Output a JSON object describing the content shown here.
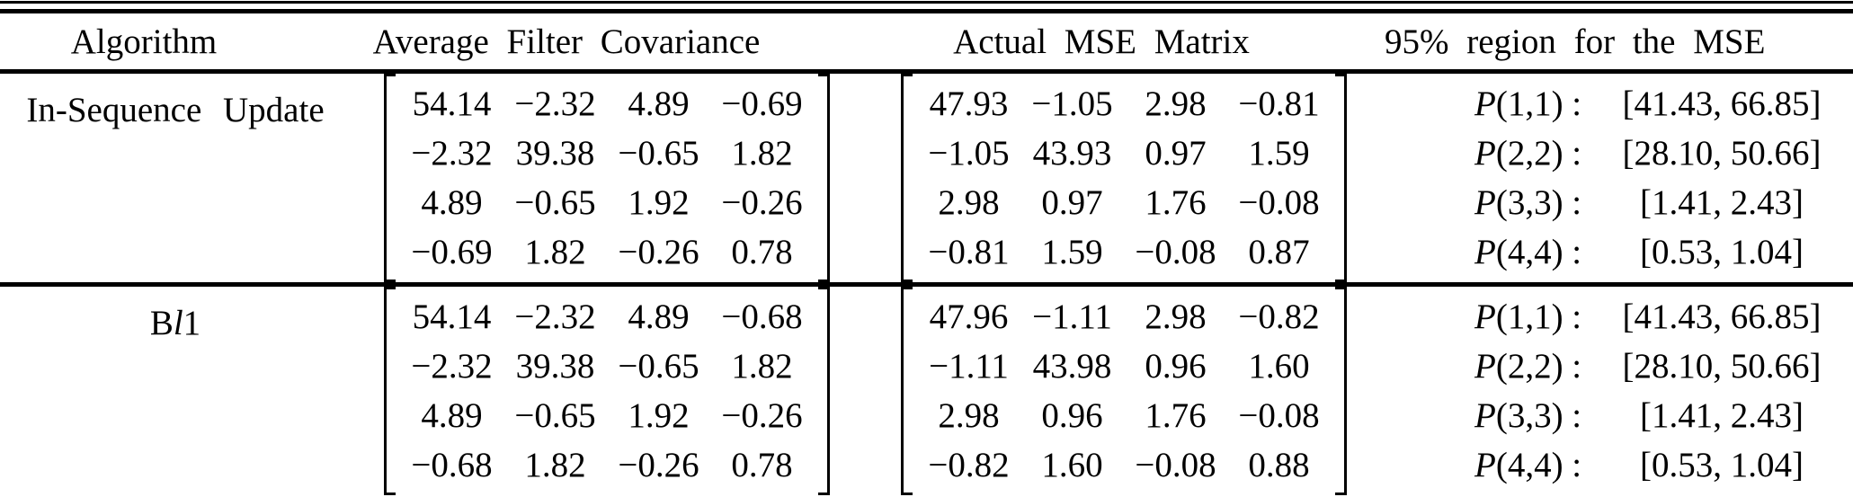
{
  "colors": {
    "text": "#000000",
    "background": "#ffffff",
    "rule": "#000000"
  },
  "table": {
    "headers": {
      "algorithm": "Algorithm",
      "covariance": "Average Filter Covariance",
      "mse": "Actual MSE Matrix",
      "region": "95% region for the MSE"
    },
    "rows": [
      {
        "algorithm": {
          "pre": "In-Sequence Update",
          "italic": "",
          "post": ""
        },
        "covariance": [
          [
            "54.14",
            "−2.32",
            "4.89",
            "−0.69"
          ],
          [
            "−2.32",
            "39.38",
            "−0.65",
            "1.82"
          ],
          [
            "4.89",
            "−0.65",
            "1.92",
            "−0.26"
          ],
          [
            "−0.69",
            "1.82",
            "−0.26",
            "0.78"
          ]
        ],
        "mse": [
          [
            "47.93",
            "−1.05",
            "2.98",
            "−0.81"
          ],
          [
            "−1.05",
            "43.93",
            "0.97",
            "1.59"
          ],
          [
            "2.98",
            "0.97",
            "1.76",
            "−0.08"
          ],
          [
            "−0.81",
            "1.59",
            "−0.08",
            "0.87"
          ]
        ],
        "region": [
          {
            "p": "P",
            "index": "(1,1) :",
            "interval": "[41.43, 66.85]"
          },
          {
            "p": "P",
            "index": "(2,2) :",
            "interval": "[28.10, 50.66]"
          },
          {
            "p": "P",
            "index": "(3,3) :",
            "interval": "[1.41, 2.43]"
          },
          {
            "p": "P",
            "index": "(4,4) :",
            "interval": "[0.53, 1.04]"
          }
        ]
      },
      {
        "algorithm": {
          "pre": "B",
          "italic": "l",
          "post": "1"
        },
        "covariance": [
          [
            "54.14",
            "−2.32",
            "4.89",
            "−0.68"
          ],
          [
            "−2.32",
            "39.38",
            "−0.65",
            "1.82"
          ],
          [
            "4.89",
            "−0.65",
            "1.92",
            "−0.26"
          ],
          [
            "−0.68",
            "1.82",
            "−0.26",
            "0.78"
          ]
        ],
        "mse": [
          [
            "47.96",
            "−1.11",
            "2.98",
            "−0.82"
          ],
          [
            "−1.11",
            "43.98",
            "0.96",
            "1.60"
          ],
          [
            "2.98",
            "0.96",
            "1.76",
            "−0.08"
          ],
          [
            "−0.82",
            "1.60",
            "−0.08",
            "0.88"
          ]
        ],
        "region": [
          {
            "p": "P",
            "index": "(1,1) :",
            "interval": "[41.43, 66.85]"
          },
          {
            "p": "P",
            "index": "(2,2) :",
            "interval": "[28.10, 50.66]"
          },
          {
            "p": "P",
            "index": "(3,3) :",
            "interval": "[1.41, 2.43]"
          },
          {
            "p": "P",
            "index": "(4,4) :",
            "interval": "[0.53, 1.04]"
          }
        ]
      }
    ]
  }
}
